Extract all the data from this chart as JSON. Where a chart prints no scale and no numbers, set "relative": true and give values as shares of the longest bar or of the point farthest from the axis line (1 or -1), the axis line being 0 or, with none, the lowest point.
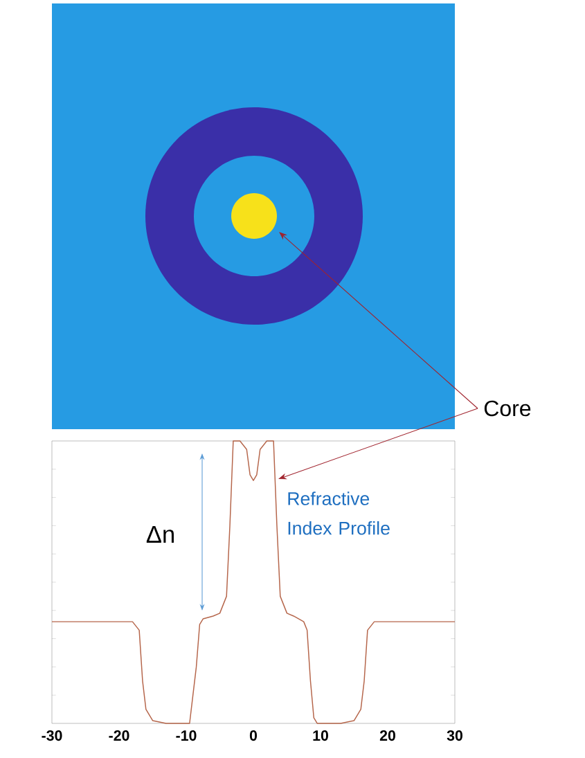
{
  "chart_data": {
    "type": "line",
    "relative": true,
    "color": "#b5654a",
    "marker": "none",
    "tick_labels": "x",
    "x": [
      -30,
      -18,
      -17,
      -16.5,
      -16,
      -15,
      -13,
      -9.5,
      -9,
      -8.5,
      -8,
      -7.5,
      -6,
      -5,
      -4,
      -3.5,
      -3,
      -2,
      -1,
      -0.5,
      0,
      0.5,
      1,
      2,
      3,
      3.5,
      4,
      5,
      6,
      7.5,
      8,
      8.5,
      9,
      9.5,
      13,
      15,
      16,
      16.5,
      17,
      18,
      30
    ],
    "values": [
      0.36,
      0.36,
      0.33,
      0.15,
      0.05,
      0.01,
      0,
      0,
      0.1,
      0.2,
      0.35,
      0.37,
      0.38,
      0.39,
      0.45,
      0.7,
      1,
      1,
      0.97,
      0.88,
      0.86,
      0.88,
      0.97,
      1,
      1,
      0.7,
      0.45,
      0.39,
      0.38,
      0.36,
      0.33,
      0.15,
      0.02,
      0,
      0,
      0.01,
      0.05,
      0.15,
      0.33,
      0.36,
      0.36
    ],
    "xlim": [
      -30,
      30
    ],
    "xticks": [
      -30,
      -20,
      -10,
      0,
      10,
      20,
      30
    ],
    "annotations": [
      "Core",
      "Δn",
      "Refractive Index Profile"
    ]
  }
}
